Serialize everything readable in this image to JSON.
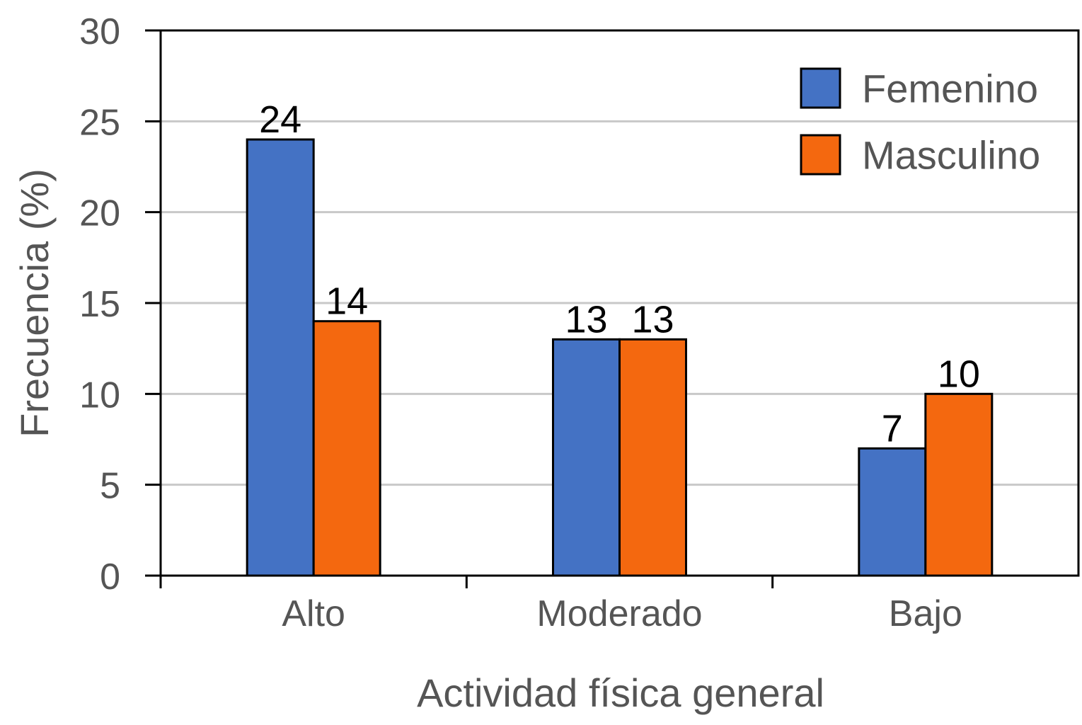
{
  "chart_data": {
    "type": "bar",
    "title": "",
    "xlabel": "Actividad física general",
    "ylabel": "Frecuencia (%)",
    "categories": [
      "Alto",
      "Moderado",
      "Bajo"
    ],
    "series": [
      {
        "name": "Femenino",
        "values": [
          24,
          13,
          7
        ],
        "color": "#4472C4"
      },
      {
        "name": "Masculino",
        "values": [
          14,
          13,
          10
        ],
        "color": "#F4680F"
      }
    ],
    "ylim": [
      0,
      30
    ],
    "yticks": [
      0,
      5,
      10,
      15,
      20,
      25,
      30
    ],
    "grid": true,
    "legend_position": "top-right"
  }
}
